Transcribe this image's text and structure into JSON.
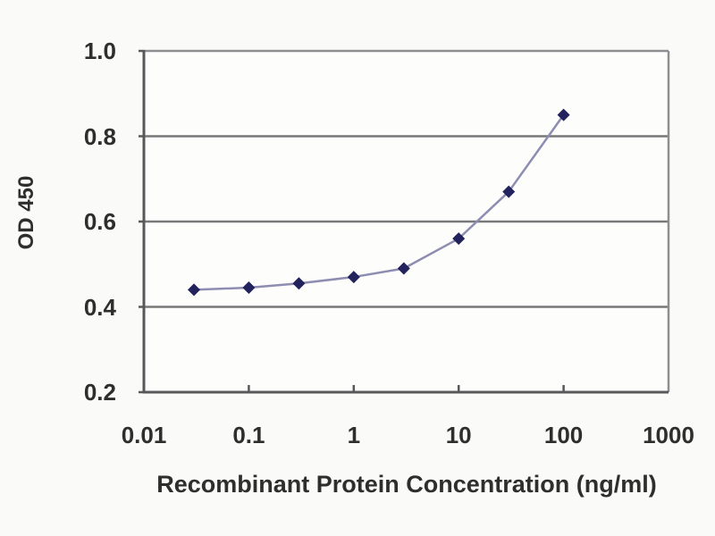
{
  "chart_data": {
    "type": "line",
    "title": "",
    "xlabel": "Recombinant Protein Concentration (ng/ml)",
    "ylabel": "OD 450",
    "x_scale": "log",
    "xlim": [
      0.01,
      1000
    ],
    "ylim": [
      0.2,
      1.0
    ],
    "x_tick_values": [
      0.01,
      0.1,
      1,
      10,
      100,
      1000
    ],
    "x_tick_labels": [
      "0.01",
      "0.1",
      "1",
      "10",
      "100",
      "1000"
    ],
    "y_tick_values": [
      0.2,
      0.4,
      0.6,
      0.8,
      1.0
    ],
    "y_tick_labels": [
      "0.2",
      "0.4",
      "0.6",
      "0.8",
      "1.0"
    ],
    "grid": "horizontal-only",
    "legend": "none",
    "series": [
      {
        "name": "OD 450",
        "marker": "diamond",
        "x": [
          0.03,
          0.1,
          0.3,
          1,
          3,
          10,
          30,
          100
        ],
        "y": [
          0.44,
          0.445,
          0.455,
          0.47,
          0.49,
          0.56,
          0.67,
          0.85
        ]
      }
    ]
  },
  "colors": {
    "background": "#fafaf8",
    "plot_background": "#fdfdfc",
    "axis": "#58585a",
    "grid": "#78787a",
    "box_border": "#8f8f91",
    "line": "#8d8db2",
    "marker": "#22225c",
    "text": "#2e2e2e"
  }
}
